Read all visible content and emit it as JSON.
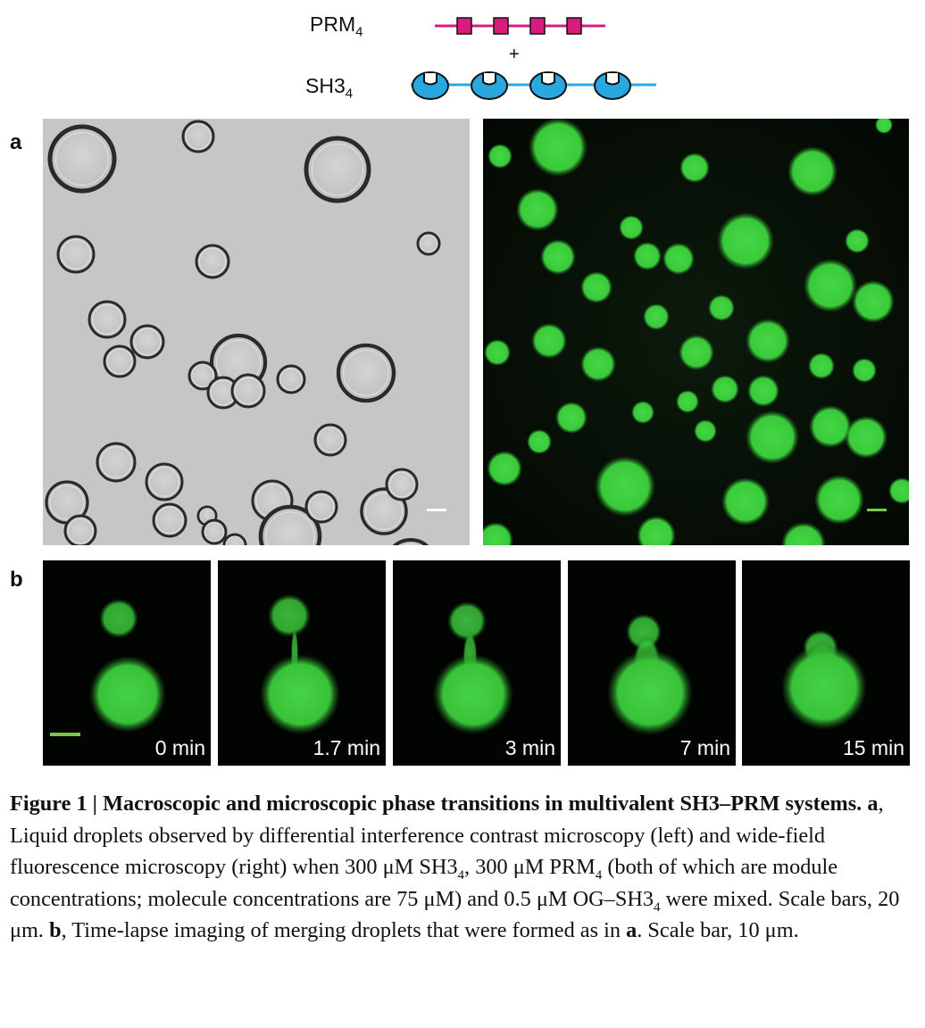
{
  "schematic": {
    "prm_label": "PRM",
    "prm_subscript": "4",
    "plus": "+",
    "sh3_label": "SH3",
    "sh3_subscript": "4",
    "prm_color": "#d81b7c",
    "sh3_color": "#29a8e0"
  },
  "panels": {
    "letter_a": "a",
    "letter_b": "b"
  },
  "timelapse": [
    {
      "label": "0 min"
    },
    {
      "label": "1.7 min"
    },
    {
      "label": "3 min"
    },
    {
      "label": "7 min"
    },
    {
      "label": "15 min"
    }
  ],
  "caption": {
    "title": "Figure 1 | Macroscopic and microscopic phase transitions in multivalent SH3–PRM systems.",
    "a_label": "a",
    "a_text_1": ", Liquid droplets observed by differential interference contrast microscopy (left) and wide-field fluorescence microscopy (right) when 300 μM SH3",
    "sub1": "4",
    "a_text_2": ", 300 μM PRM",
    "sub2": "4",
    "a_text_3": " (both of which are module concentrations; molecule concentrations are 75 μM) and 0.5 μM OG–SH3",
    "sub3": "4",
    "a_text_4": " were mixed. Scale bars, 20 μm. ",
    "b_label": "b",
    "b_text_1": ", Time-lapse imaging of merging droplets that were formed as in ",
    "a_ref": "a",
    "b_text_2": ". Scale bar, 10 μm."
  },
  "colors": {
    "fluorescence_green": "#3ccf3c",
    "dic_background": "#c8c8c8"
  }
}
